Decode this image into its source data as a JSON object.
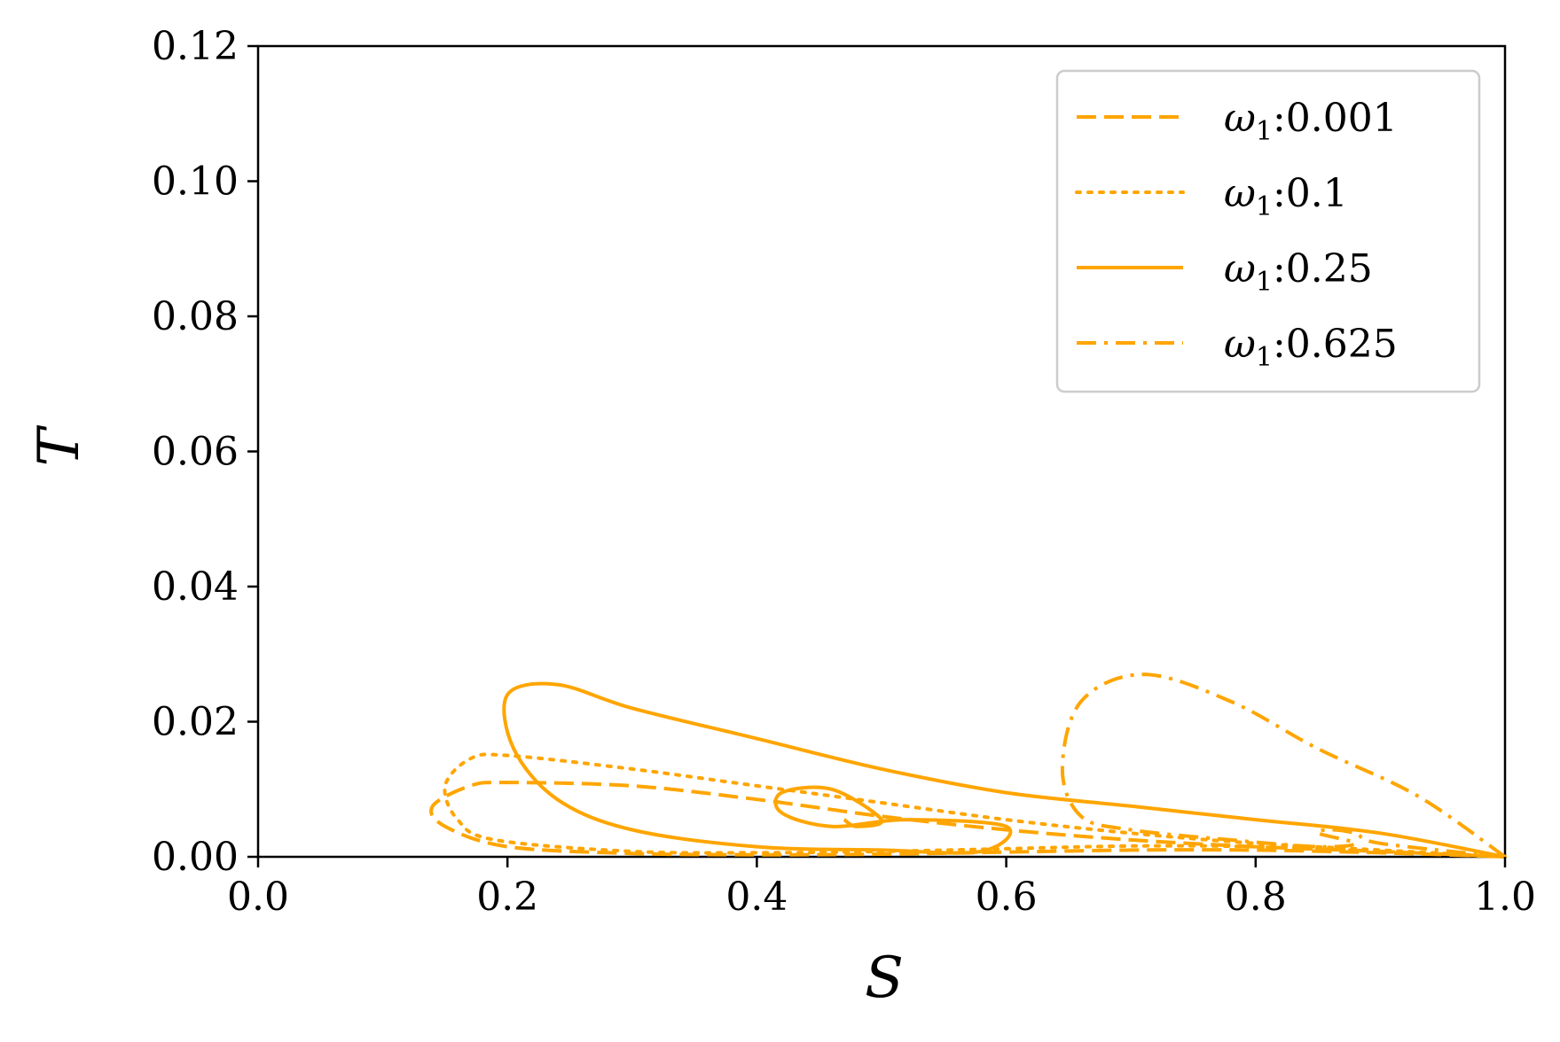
{
  "chart_data": {
    "type": "line",
    "xlabel": "S",
    "ylabel": "T",
    "xlim": [
      0.0,
      1.0
    ],
    "ylim": [
      0.0,
      0.12
    ],
    "xticks": [
      "0.0",
      "0.2",
      "0.4",
      "0.6",
      "0.8",
      "1.0"
    ],
    "yticks": [
      "0.00",
      "0.02",
      "0.04",
      "0.06",
      "0.08",
      "0.10",
      "0.12"
    ],
    "xtick_values": [
      0.0,
      0.2,
      0.4,
      0.6,
      0.8,
      1.0
    ],
    "ytick_values": [
      0.0,
      0.02,
      0.04,
      0.06,
      0.08,
      0.1,
      0.12
    ],
    "legend_position": "upper right",
    "color": "#FFA500",
    "series": [
      {
        "name": "ω₁:0.001",
        "legend_symbol": "ω",
        "legend_sub": "1",
        "legend_value": ":0.001",
        "style": "dashed",
        "x": [
          1.0,
          0.9,
          0.8,
          0.7,
          0.6,
          0.5,
          0.4,
          0.3,
          0.2,
          0.17,
          0.14,
          0.15,
          0.2,
          0.3,
          0.4,
          0.5,
          0.6,
          0.7,
          0.8,
          0.9,
          1.0
        ],
        "y": [
          0.0,
          0.0008,
          0.0015,
          0.0025,
          0.004,
          0.006,
          0.0085,
          0.0105,
          0.011,
          0.0105,
          0.0075,
          0.0045,
          0.0015,
          0.0005,
          0.0003,
          0.0004,
          0.0007,
          0.001,
          0.001,
          0.0006,
          0.0
        ]
      },
      {
        "name": "ω₁:0.1",
        "legend_symbol": "ω",
        "legend_sub": "1",
        "legend_value": ":0.1",
        "style": "dotted",
        "x": [
          1.0,
          0.9,
          0.8,
          0.7,
          0.6,
          0.5,
          0.4,
          0.3,
          0.2,
          0.17,
          0.15,
          0.16,
          0.19,
          0.3,
          0.4,
          0.5,
          0.6,
          0.7,
          0.8,
          0.9,
          1.0
        ],
        "y": [
          0.0,
          0.001,
          0.002,
          0.0035,
          0.0055,
          0.008,
          0.0105,
          0.013,
          0.015,
          0.0145,
          0.0105,
          0.0055,
          0.0025,
          0.0008,
          0.0006,
          0.0008,
          0.0012,
          0.0016,
          0.0015,
          0.0008,
          0.0
        ]
      },
      {
        "name": "ω₁:0.25",
        "legend_symbol": "ω",
        "legend_sub": "1",
        "legend_value": ":0.25",
        "style": "solid",
        "x": [
          1.0,
          0.9,
          0.8,
          0.7,
          0.6,
          0.5,
          0.4,
          0.3,
          0.24,
          0.2,
          0.205,
          0.24,
          0.3,
          0.4,
          0.5,
          0.58,
          0.6,
          0.52,
          0.46,
          0.42,
          0.42,
          0.46,
          0.5,
          0.48,
          0.47
        ],
        "y": [
          0.0,
          0.0035,
          0.0055,
          0.0075,
          0.0095,
          0.013,
          0.0175,
          0.022,
          0.0255,
          0.024,
          0.016,
          0.0085,
          0.004,
          0.0015,
          0.001,
          0.0008,
          0.0045,
          0.0055,
          0.0045,
          0.0065,
          0.0095,
          0.01,
          0.0055,
          0.0045,
          0.0055
        ]
      },
      {
        "name": "ω₁:0.625",
        "legend_symbol": "ω",
        "legend_sub": "1",
        "legend_value": ":0.625",
        "style": "dashdot",
        "x": [
          1.0,
          0.93,
          0.85,
          0.78,
          0.71,
          0.66,
          0.645,
          0.66,
          0.7,
          0.78,
          0.85,
          0.88,
          0.85,
          0.86,
          0.88,
          0.9,
          1.0
        ],
        "y": [
          0.0,
          0.009,
          0.016,
          0.023,
          0.027,
          0.023,
          0.013,
          0.006,
          0.004,
          0.0025,
          0.0015,
          0.002,
          0.0035,
          0.004,
          0.0035,
          0.002,
          0.0
        ]
      }
    ]
  }
}
